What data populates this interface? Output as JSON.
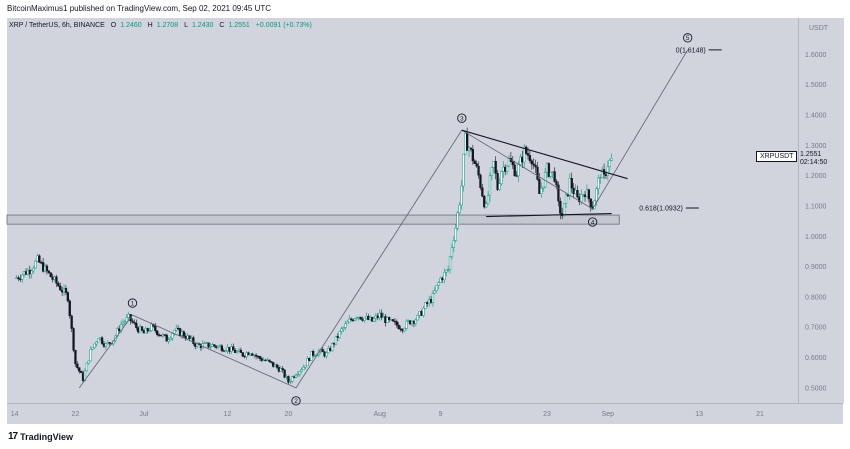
{
  "header": {
    "publisher": "BitcoinMaximus1 published on TradingView.com, Sep 02, 2021 09:45 UTC"
  },
  "symbol": {
    "title": "XRP / TetherUS, 6h, BINANCE",
    "o_label": "O",
    "o_value": "1.2460",
    "h_label": "H",
    "h_value": "1.2708",
    "l_label": "L",
    "l_value": "1.2430",
    "c_label": "C",
    "c_value": "1.2551",
    "change": "+0.0091 (+0.73%)"
  },
  "footer": {
    "logo_text": "TradingView"
  },
  "price_tag": {
    "label": "XRPUSDT",
    "price": "1.2551",
    "countdown": "02:14:50"
  },
  "colors": {
    "up": "#089981",
    "down": "#131722",
    "background": "#d1d4dc",
    "line": "#131722"
  },
  "chart_data": {
    "type": "candlestick",
    "title": "XRP / TetherUS, 6h, BINANCE",
    "y_axis_unit": "USDT",
    "ylim": [
      0.45,
      1.72
    ],
    "yticks": [
      {
        "value": 0.5,
        "label": "0.5000"
      },
      {
        "value": 0.6,
        "label": "0.6000"
      },
      {
        "value": 0.7,
        "label": "0.7000"
      },
      {
        "value": 0.8,
        "label": "0.8000"
      },
      {
        "value": 0.9,
        "label": "0.9000"
      },
      {
        "value": 1.0,
        "label": "1.0000"
      },
      {
        "value": 1.1,
        "label": "1.1000"
      },
      {
        "value": 1.2,
        "label": "1.2000"
      },
      {
        "value": 1.3,
        "label": "1.3000"
      },
      {
        "value": 1.4,
        "label": "1.4000"
      },
      {
        "value": 1.5,
        "label": "1.5000"
      },
      {
        "value": 1.6,
        "label": "1.6000"
      }
    ],
    "xticks": [
      {
        "day": 0,
        "label": "14"
      },
      {
        "day": 8,
        "label": "22"
      },
      {
        "day": 17,
        "label": "Jul"
      },
      {
        "day": 28,
        "label": "12"
      },
      {
        "day": 36,
        "label": "20"
      },
      {
        "day": 48,
        "label": "Aug"
      },
      {
        "day": 56,
        "label": "9"
      },
      {
        "day": 70,
        "label": "23"
      },
      {
        "day": 78,
        "label": "Sep"
      },
      {
        "day": 90,
        "label": "13"
      },
      {
        "day": 98,
        "label": "21"
      }
    ],
    "x_range_days": [
      -1,
      103
    ],
    "price_path": [
      [
        0,
        0.86
      ],
      [
        2,
        0.89
      ],
      [
        3,
        0.92
      ],
      [
        5,
        0.86
      ],
      [
        7,
        0.8
      ],
      [
        8,
        0.58
      ],
      [
        9,
        0.53
      ],
      [
        10,
        0.62
      ],
      [
        11,
        0.67
      ],
      [
        12,
        0.64
      ],
      [
        13,
        0.66
      ],
      [
        14,
        0.71
      ],
      [
        15,
        0.73
      ],
      [
        16,
        0.7
      ],
      [
        17,
        0.68
      ],
      [
        18,
        0.7
      ],
      [
        20,
        0.66
      ],
      [
        21,
        0.69
      ],
      [
        22,
        0.68
      ],
      [
        23,
        0.66
      ],
      [
        24,
        0.64
      ],
      [
        26,
        0.64
      ],
      [
        28,
        0.63
      ],
      [
        30,
        0.61
      ],
      [
        31,
        0.62
      ],
      [
        32,
        0.6
      ],
      [
        33,
        0.59
      ],
      [
        35,
        0.56
      ],
      [
        36,
        0.52
      ],
      [
        37,
        0.55
      ],
      [
        38,
        0.57
      ],
      [
        39,
        0.61
      ],
      [
        40,
        0.62
      ],
      [
        41,
        0.61
      ],
      [
        42,
        0.65
      ],
      [
        43,
        0.69
      ],
      [
        44,
        0.72
      ],
      [
        45,
        0.74
      ],
      [
        46,
        0.73
      ],
      [
        47,
        0.72
      ],
      [
        48,
        0.74
      ],
      [
        49,
        0.72
      ],
      [
        50,
        0.71
      ],
      [
        51,
        0.7
      ],
      [
        52,
        0.72
      ],
      [
        53,
        0.73
      ],
      [
        54,
        0.77
      ],
      [
        55,
        0.8
      ],
      [
        56,
        0.86
      ],
      [
        57,
        0.89
      ],
      [
        57.5,
        0.97
      ],
      [
        58,
        1.03
      ],
      [
        58.7,
        1.15
      ],
      [
        59.2,
        1.32
      ],
      [
        59.8,
        1.29
      ],
      [
        60.5,
        1.24
      ],
      [
        61,
        1.2
      ],
      [
        61.6,
        1.13
      ],
      [
        62,
        1.09
      ],
      [
        62.5,
        1.18
      ],
      [
        63,
        1.24
      ],
      [
        63.5,
        1.16
      ],
      [
        64,
        1.22
      ],
      [
        65,
        1.25
      ],
      [
        66,
        1.21
      ],
      [
        67,
        1.28
      ],
      [
        68,
        1.26
      ],
      [
        68.5,
        1.21
      ],
      [
        69,
        1.14
      ],
      [
        70,
        1.22
      ],
      [
        71,
        1.2
      ],
      [
        71.5,
        1.1
      ],
      [
        72,
        1.07
      ],
      [
        72.6,
        1.13
      ],
      [
        73,
        1.18
      ],
      [
        74,
        1.12
      ],
      [
        75,
        1.15
      ],
      [
        76,
        1.1
      ],
      [
        76.6,
        1.16
      ],
      [
        77,
        1.21
      ],
      [
        77.5,
        1.19
      ],
      [
        78,
        1.24
      ],
      [
        78.5,
        1.25
      ]
    ],
    "wave_path": [
      [
        8.5,
        0.5
      ],
      [
        15.5,
        0.74
      ],
      [
        37,
        0.5
      ],
      [
        58.8,
        1.35
      ],
      [
        76,
        1.09
      ],
      [
        88.5,
        1.615
      ]
    ],
    "wave_labels": [
      {
        "label": "1",
        "day": 15.5,
        "price": 0.74,
        "pos": "above"
      },
      {
        "label": "2",
        "day": 37,
        "price": 0.5,
        "pos": "below"
      },
      {
        "label": "3",
        "day": 58.8,
        "price": 1.35,
        "pos": "above"
      },
      {
        "label": "4",
        "day": 76,
        "price": 1.09,
        "pos": "below"
      },
      {
        "label": "5",
        "day": 88.5,
        "price": 1.615,
        "pos": "above"
      }
    ],
    "triangle_upper": [
      [
        58.8,
        1.35
      ],
      [
        80.6,
        1.19
      ]
    ],
    "triangle_lower": [
      [
        62,
        1.065
      ],
      [
        78.5,
        1.075
      ]
    ],
    "support_zone": [
      1.04,
      1.07
    ],
    "support_zone_days": [
      -1,
      79.5
    ],
    "fib_levels": [
      {
        "label": "0(1.6148)",
        "value": 1.6148,
        "day_start": 86
      },
      {
        "label": "0.618(1.0932)",
        "value": 1.0932,
        "day_start": 83
      }
    ],
    "last_price": 1.2551
  }
}
